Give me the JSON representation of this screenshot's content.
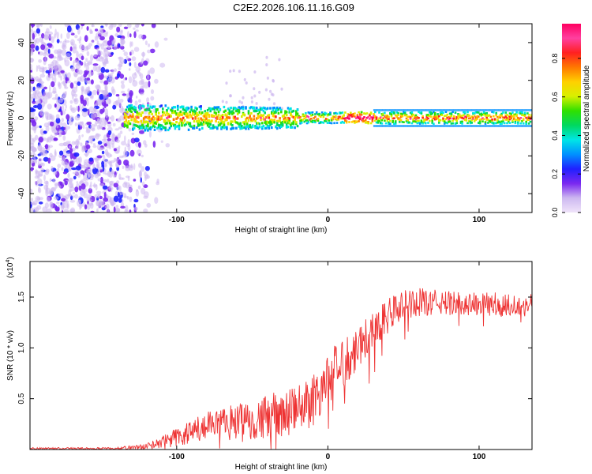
{
  "title": "C2E2.2026.106.11.16.G09",
  "chart_data": [
    {
      "type": "heatmap",
      "title": "C2E2.2026.106.11.16.G09",
      "xlabel": "Height of straight line (km)",
      "ylabel": "Frequency (Hz)",
      "xlim": [
        -197,
        135
      ],
      "ylim": [
        -50,
        50
      ],
      "x_ticks": [
        -100,
        0,
        100
      ],
      "x_tick_labels": [
        "-100",
        "0",
        "100"
      ],
      "y_ticks": [
        -40,
        -20,
        0,
        20,
        40
      ],
      "y_tick_labels": [
        "-40",
        "-20",
        "0",
        "20",
        "40"
      ],
      "colorbar": {
        "label": "Normalized spectral amplitude",
        "range": [
          0,
          0.98
        ],
        "ticks": [
          0.0,
          0.2,
          0.4,
          0.6,
          0.8
        ],
        "tick_labels": [
          "0.0",
          "0.2",
          "0.4",
          "0.6",
          "0.8"
        ],
        "colors": [
          "#f0e4fa",
          "#cdb8f0",
          "#7a28f0",
          "#2020ff",
          "#0090ff",
          "#00e6e6",
          "#00d860",
          "#30e000",
          "#d8f000",
          "#ffd000",
          "#ff7800",
          "#ff2020",
          "#ff40a0",
          "#ff0060"
        ]
      },
      "features": {
        "noise_region_x": [
          -197,
          -118
        ],
        "band_center_hz": 0,
        "band_start_x": -135,
        "strong_segment_x": [
          10,
          30
        ]
      }
    },
    {
      "type": "line",
      "xlabel": "Height of straight line (km)",
      "ylabel": "SNR (10 * v/v)",
      "exponent_label": "(x10",
      "exponent_power": "4",
      "exponent_close": ")",
      "xlim": [
        -197,
        135
      ],
      "ylim": [
        0,
        1.85
      ],
      "x_ticks": [
        -100,
        0,
        100
      ],
      "x_tick_labels": [
        "-100",
        "0",
        "100"
      ],
      "y_ticks": [
        0.5,
        1.0,
        1.5
      ],
      "y_tick_labels": [
        "0.5",
        "1.0",
        "1.5"
      ],
      "line_color": "#ee3333",
      "series": [
        {
          "name": "SNR",
          "envelope_x": [
            -197,
            -140,
            -120,
            -100,
            -80,
            -60,
            -40,
            -20,
            -10,
            0,
            10,
            20,
            30,
            40,
            50,
            60,
            80,
            100,
            120,
            135
          ],
          "envelope_y": [
            0.01,
            0.01,
            0.03,
            0.12,
            0.22,
            0.28,
            0.32,
            0.38,
            0.5,
            0.68,
            0.85,
            1.02,
            1.18,
            1.32,
            1.42,
            1.45,
            1.44,
            1.43,
            1.42,
            1.42
          ],
          "noise_amplitude": [
            0.01,
            0.01,
            0.03,
            0.1,
            0.15,
            0.18,
            0.22,
            0.25,
            0.28,
            0.28,
            0.25,
            0.22,
            0.2,
            0.18,
            0.15,
            0.14,
            0.12,
            0.12,
            0.12,
            0.12
          ]
        }
      ]
    }
  ]
}
